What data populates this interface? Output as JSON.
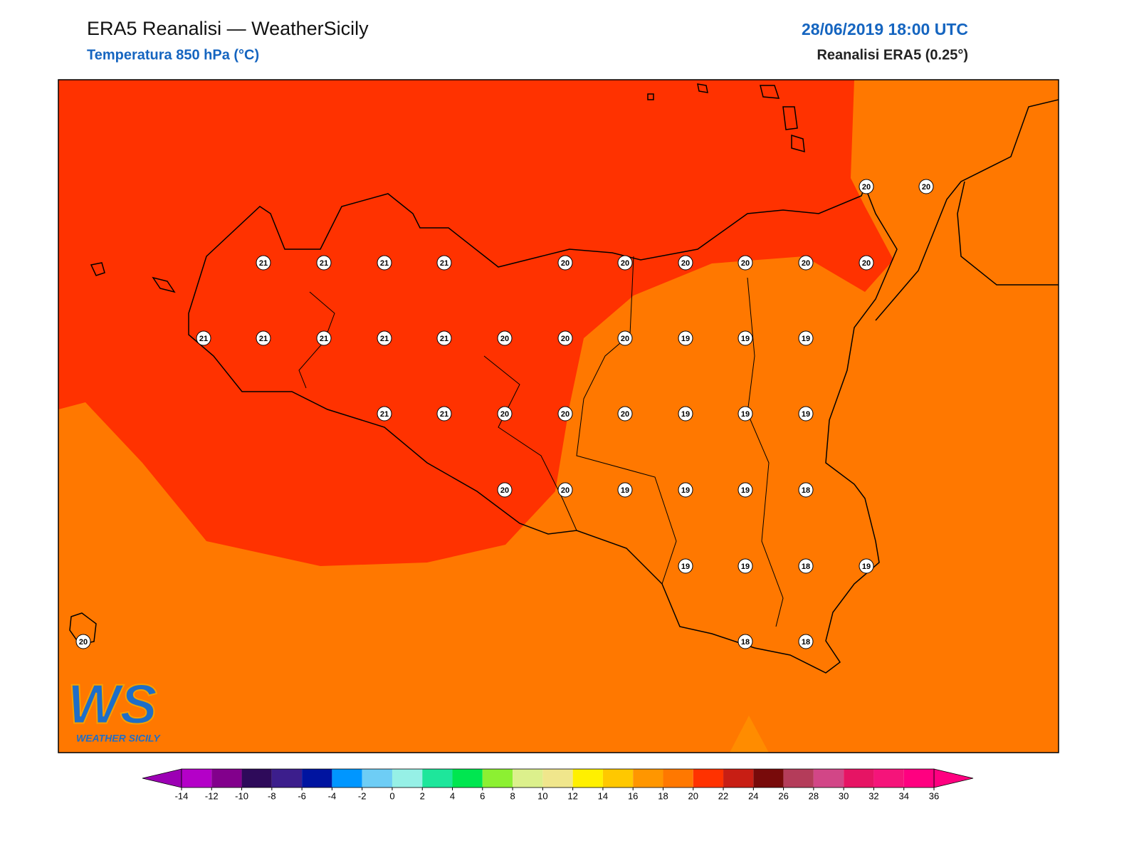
{
  "header": {
    "title": "ERA5 Reanalisi — WeatherSicily",
    "subtitle": "Temperatura 850 hPa (°C)",
    "datetime": "28/06/2019 18:00 UTC",
    "source": "Reanalisi ERA5 (0.25°)"
  },
  "map": {
    "values": [
      20,
      20,
      21,
      21,
      21,
      21,
      20,
      20,
      20,
      20,
      20,
      20,
      21,
      21,
      21,
      21,
      21,
      20,
      20,
      20,
      19,
      19,
      19,
      21,
      21,
      20,
      20,
      20,
      19,
      19,
      19,
      20,
      20,
      19,
      19,
      19,
      18,
      19,
      19,
      18,
      19,
      20,
      18,
      18
    ]
  },
  "colorbar": {
    "ticks": [
      -14,
      -12,
      -10,
      -8,
      -6,
      -4,
      -2,
      0,
      2,
      4,
      6,
      8,
      10,
      12,
      14,
      16,
      18,
      20,
      22,
      24,
      26,
      28,
      30,
      32,
      34,
      36
    ],
    "colors": [
      "#b400c8",
      "#82008c",
      "#2e0a5a",
      "#3c1e8c",
      "#0014a0",
      "#0096ff",
      "#6ecdf5",
      "#96f0e6",
      "#1ee69b",
      "#00e650",
      "#8cf032",
      "#dcf08c",
      "#f0e68c",
      "#fff000",
      "#ffc800",
      "#ff9600",
      "#ff7800",
      "#ff3200",
      "#c81e14",
      "#780a0a",
      "#b43c5a",
      "#d24687",
      "#e61464",
      "#f5147a",
      "#ff0080"
    ],
    "under": "#9c00b4",
    "over": "#ff0080"
  },
  "logo": {
    "mark": "WS",
    "text": "WEATHER SICILY"
  }
}
